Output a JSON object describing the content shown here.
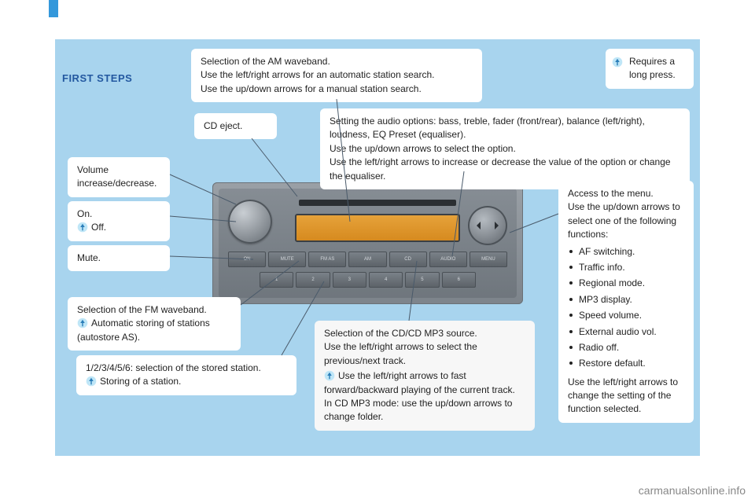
{
  "colors": {
    "page_bg": "#a8d4ee",
    "tab": "#3498db",
    "heading": "#2358a0",
    "callout_bg": "#ffffff",
    "callout_bg_alt": "#f7f7f7",
    "text": "#222222",
    "radio_body_top": "#9aa0a6",
    "radio_body_bottom": "#7d848b",
    "display_top": "#e6a23a",
    "display_bottom": "#d68a1f",
    "watermark": "#888888",
    "icon_bg": "#bfe6f7",
    "icon_arrow": "#2a7db8"
  },
  "heading": "FIRST STEPS",
  "watermark": "carmanualsonline.info",
  "radio": {
    "row1_labels": [
      "ON",
      "MUTE",
      "FM AS",
      "AM",
      "CD",
      "AUDIO",
      "MENU"
    ],
    "row2_labels": [
      "1",
      "2",
      "3",
      "4",
      "5",
      "6"
    ]
  },
  "callouts": {
    "am": "Selection of the AM waveband.\nUse the left/right arrows for an automatic station search.\nUse the up/down arrows for a manual station search.",
    "longpress": "Requires a long press.",
    "cdeject": "CD eject.",
    "audio_options": "Setting the audio options: bass, treble, fader (front/rear), balance (left/right), loudness, EQ Preset (equaliser).\nUse the up/down arrows to select the option.\nUse the left/right arrows to increase or decrease the value of the option or change the equaliser.",
    "volume": "Volume increase/decrease.",
    "on_label": "On.",
    "on_off": "Off.",
    "mute": "Mute.",
    "fm_line1": "Selection of the FM waveband.",
    "fm_line2": "Automatic storing of stations (autostore AS).",
    "presets_line1": "1/2/3/4/5/6: selection of the stored station.",
    "presets_line2": "Storing of a station.",
    "cdmp3_p1": "Selection of the CD/CD MP3 source.\nUse the left/right arrows to select the previous/next track.",
    "cdmp3_p2": "Use the left/right arrows to fast forward/backward playing of the current track.\nIn CD MP3 mode: use the up/down arrows to change folder.",
    "menu_intro": "Access to the menu.\nUse the up/down arrows to select one of the following functions:",
    "menu_items": [
      "AF switching.",
      "Traffic info.",
      "Regional mode.",
      "MP3 display.",
      "Speed volume.",
      "External audio vol.",
      "Radio off.",
      "Restore default."
    ],
    "menu_outro": "Use the left/right arrows to change the setting of the function selected."
  }
}
